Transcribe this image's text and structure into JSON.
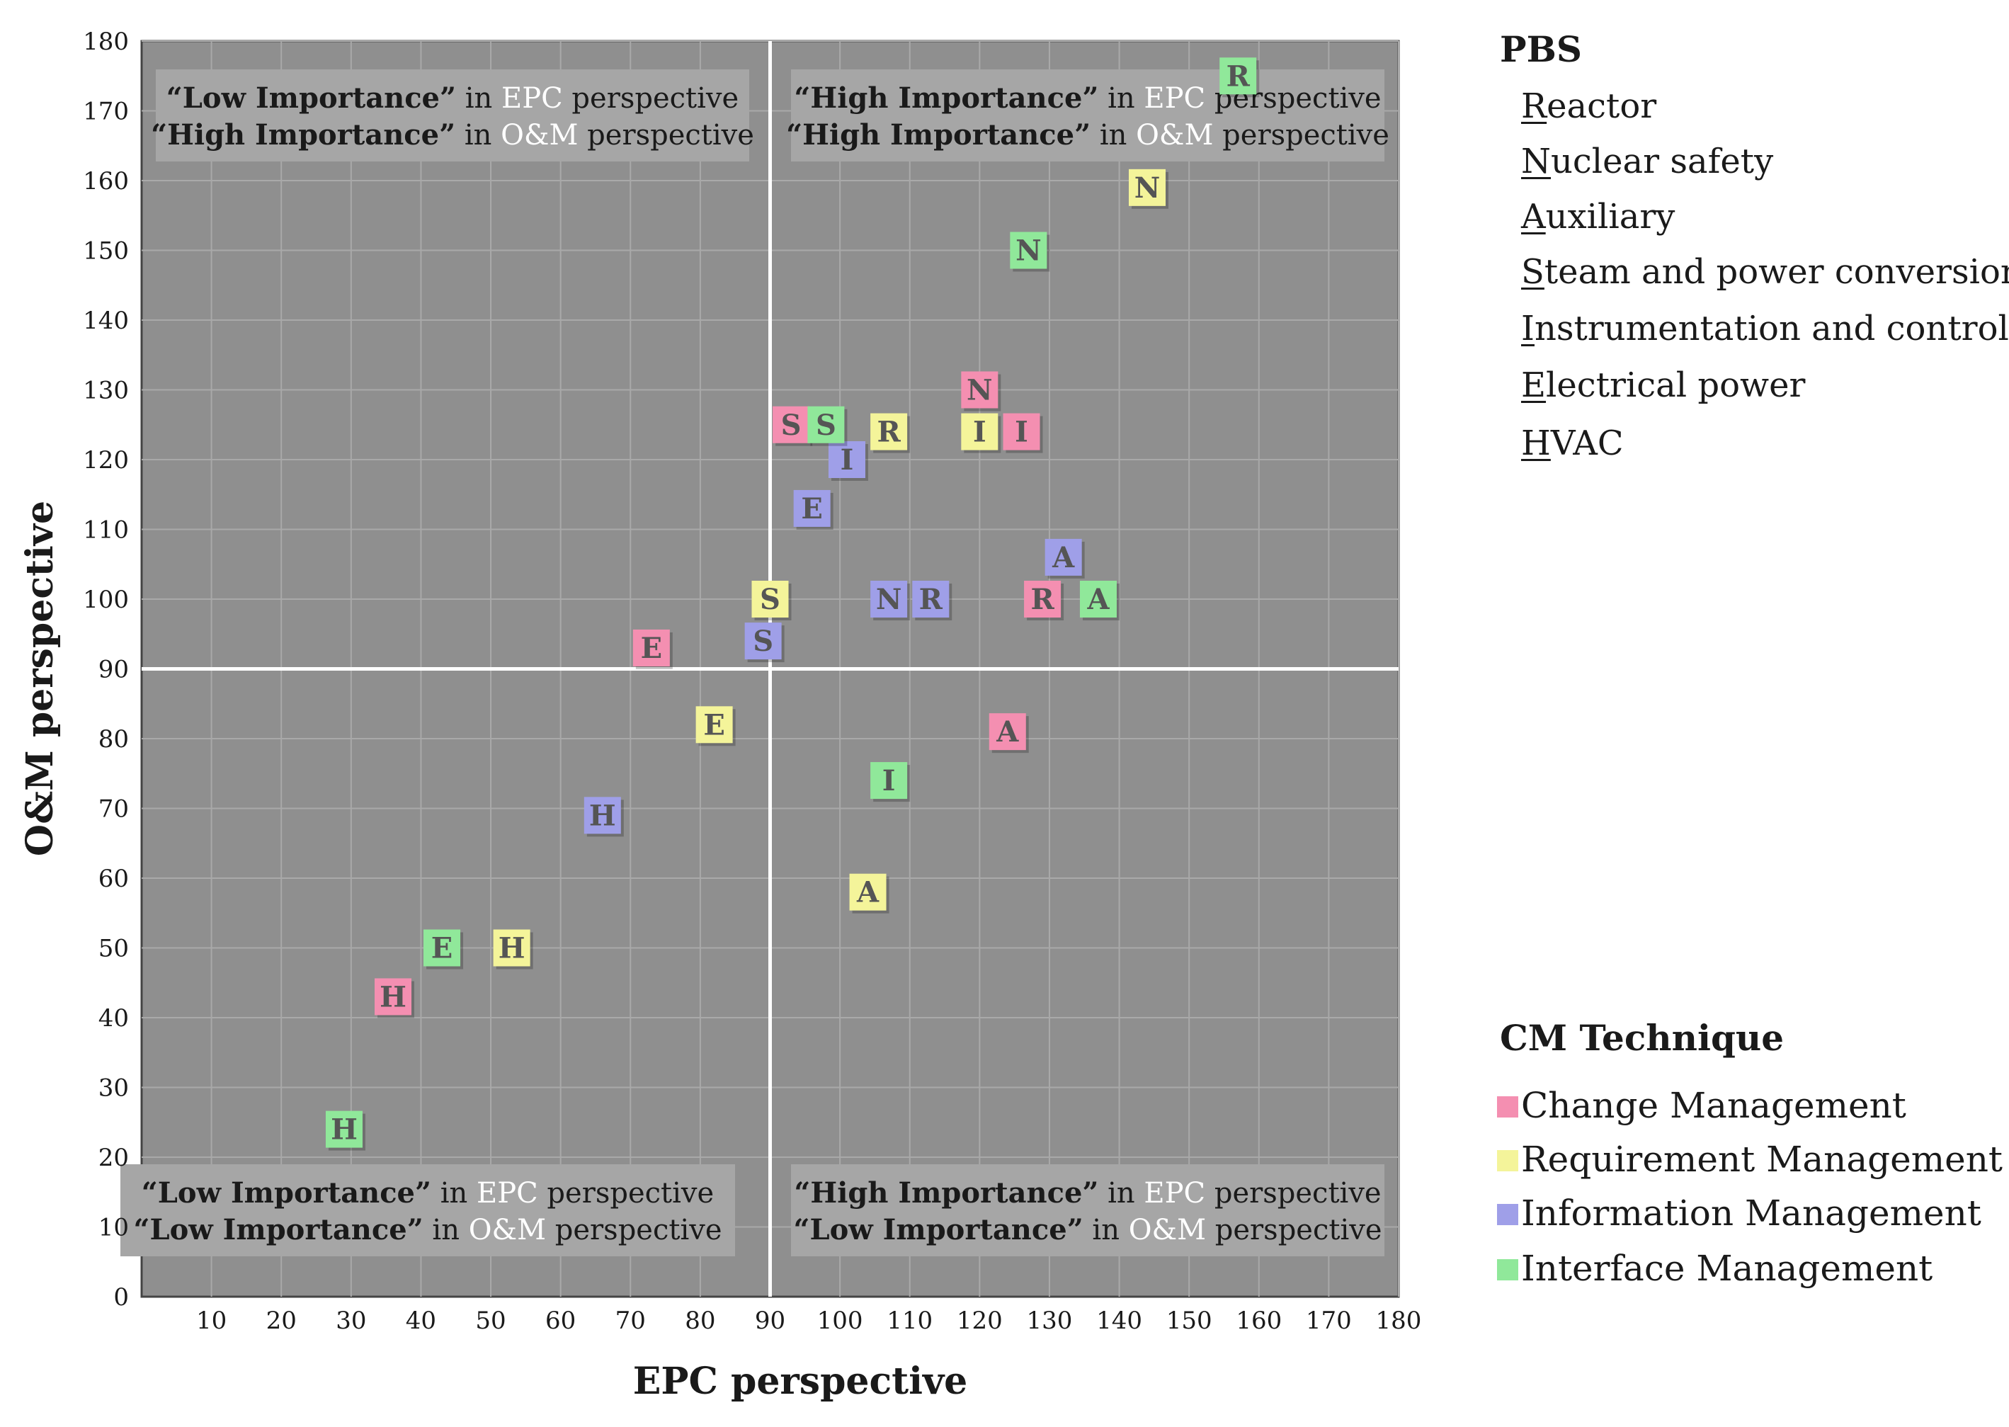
{
  "chart_data": {
    "type": "scatter",
    "xlabel": "EPC perspective",
    "ylabel": "O&M perspective",
    "xlim": [
      0,
      180
    ],
    "ylim": [
      0,
      180
    ],
    "x_ticks": [
      10,
      20,
      30,
      40,
      50,
      60,
      70,
      80,
      90,
      100,
      110,
      120,
      130,
      140,
      150,
      160,
      170,
      180
    ],
    "y_ticks": [
      0,
      10,
      20,
      30,
      40,
      50,
      60,
      70,
      80,
      90,
      100,
      110,
      120,
      130,
      140,
      150,
      160,
      170,
      180
    ],
    "grid": true,
    "divider": {
      "x": 90,
      "y": 90
    },
    "quadrants": [
      {
        "id": "top-left",
        "lines": [
          [
            {
              "t": "“Low Importance”",
              "s": "b"
            },
            {
              "t": " in ",
              "s": "n"
            },
            {
              "t": "EPC",
              "s": "w"
            },
            {
              "t": " perspective",
              "s": "n"
            }
          ],
          [
            {
              "t": "“High Importance”",
              "s": "b"
            },
            {
              "t": " in ",
              "s": "n"
            },
            {
              "t": "O&M",
              "s": "w"
            },
            {
              "t": " perspective",
              "s": "n"
            }
          ]
        ]
      },
      {
        "id": "top-right",
        "lines": [
          [
            {
              "t": "“High Importance”",
              "s": "b"
            },
            {
              "t": " in ",
              "s": "n"
            },
            {
              "t": "EPC",
              "s": "w"
            },
            {
              "t": " perspective",
              "s": "n"
            }
          ],
          [
            {
              "t": "“High Importance”",
              "s": "b"
            },
            {
              "t": " in ",
              "s": "n"
            },
            {
              "t": "O&M",
              "s": "w"
            },
            {
              "t": " perspective",
              "s": "n"
            }
          ]
        ]
      },
      {
        "id": "bottom-left",
        "lines": [
          [
            {
              "t": "“Low Importance”",
              "s": "b"
            },
            {
              "t": " in ",
              "s": "n"
            },
            {
              "t": "EPC",
              "s": "w"
            },
            {
              "t": " perspective",
              "s": "n"
            }
          ],
          [
            {
              "t": "“Low Importance”",
              "s": "b"
            },
            {
              "t": " in ",
              "s": "n"
            },
            {
              "t": "O&M",
              "s": "w"
            },
            {
              "t": " perspective",
              "s": "n"
            }
          ]
        ]
      },
      {
        "id": "bottom-right",
        "lines": [
          [
            {
              "t": "“High Importance”",
              "s": "b"
            },
            {
              "t": " in ",
              "s": "n"
            },
            {
              "t": "EPC",
              "s": "w"
            },
            {
              "t": " perspective",
              "s": "n"
            }
          ],
          [
            {
              "t": "“Low Importance”",
              "s": "b"
            },
            {
              "t": " in ",
              "s": "n"
            },
            {
              "t": "O&M",
              "s": "w"
            },
            {
              "t": " perspective",
              "s": "n"
            }
          ]
        ]
      }
    ],
    "series": [
      {
        "name": "Change Management",
        "color": "#f48fb1",
        "points": [
          {
            "label": "S",
            "x": 93,
            "y": 125
          },
          {
            "label": "N",
            "x": 120,
            "y": 130
          },
          {
            "label": "I",
            "x": 126,
            "y": 124
          },
          {
            "label": "R",
            "x": 129,
            "y": 100
          },
          {
            "label": "E",
            "x": 73,
            "y": 93
          },
          {
            "label": "A",
            "x": 124,
            "y": 81
          },
          {
            "label": "H",
            "x": 36,
            "y": 43
          }
        ]
      },
      {
        "name": "Requirement Management",
        "color": "#f4f49a",
        "points": [
          {
            "label": "N",
            "x": 144,
            "y": 159
          },
          {
            "label": "R",
            "x": 107,
            "y": 124
          },
          {
            "label": "I",
            "x": 120,
            "y": 124
          },
          {
            "label": "S",
            "x": 90,
            "y": 100
          },
          {
            "label": "E",
            "x": 82,
            "y": 82
          },
          {
            "label": "A",
            "x": 104,
            "y": 58
          },
          {
            "label": "H",
            "x": 53,
            "y": 50
          }
        ]
      },
      {
        "name": "Information Management",
        "color": "#9f9fe8",
        "points": [
          {
            "label": "I",
            "x": 101,
            "y": 120
          },
          {
            "label": "E",
            "x": 96,
            "y": 113
          },
          {
            "label": "A",
            "x": 132,
            "y": 106
          },
          {
            "label": "N",
            "x": 107,
            "y": 100
          },
          {
            "label": "R",
            "x": 113,
            "y": 100
          },
          {
            "label": "S",
            "x": 89,
            "y": 94
          },
          {
            "label": "H",
            "x": 66,
            "y": 69
          }
        ]
      },
      {
        "name": "Interface Management",
        "color": "#90e89a",
        "points": [
          {
            "label": "R",
            "x": 157,
            "y": 175
          },
          {
            "label": "N",
            "x": 127,
            "y": 150
          },
          {
            "label": "S",
            "x": 98,
            "y": 125
          },
          {
            "label": "A",
            "x": 137,
            "y": 100
          },
          {
            "label": "I",
            "x": 107,
            "y": 74
          },
          {
            "label": "E",
            "x": 43,
            "y": 50
          },
          {
            "label": "H",
            "x": 29,
            "y": 24
          }
        ]
      }
    ]
  },
  "legend": {
    "pbs_title": "PBS",
    "pbs_items": [
      {
        "key": "R",
        "rest": "eactor"
      },
      {
        "key": "N",
        "rest": "uclear safety"
      },
      {
        "key": "A",
        "rest": "uxiliary"
      },
      {
        "key": "S",
        "rest": "team and power conversion"
      },
      {
        "key": "I",
        "rest": "nstrumentation and control"
      },
      {
        "key": "E",
        "rest": "lectrical power"
      },
      {
        "key": "H",
        "rest": "VAC"
      }
    ],
    "cm_title": "CM Technique"
  },
  "colors": {
    "plot_bg": "#8f8f8f",
    "grid": "#a9a9a9",
    "divider": "#ffffff",
    "quadrant_box": "#a6a6a6",
    "marker_text": "#555555"
  }
}
